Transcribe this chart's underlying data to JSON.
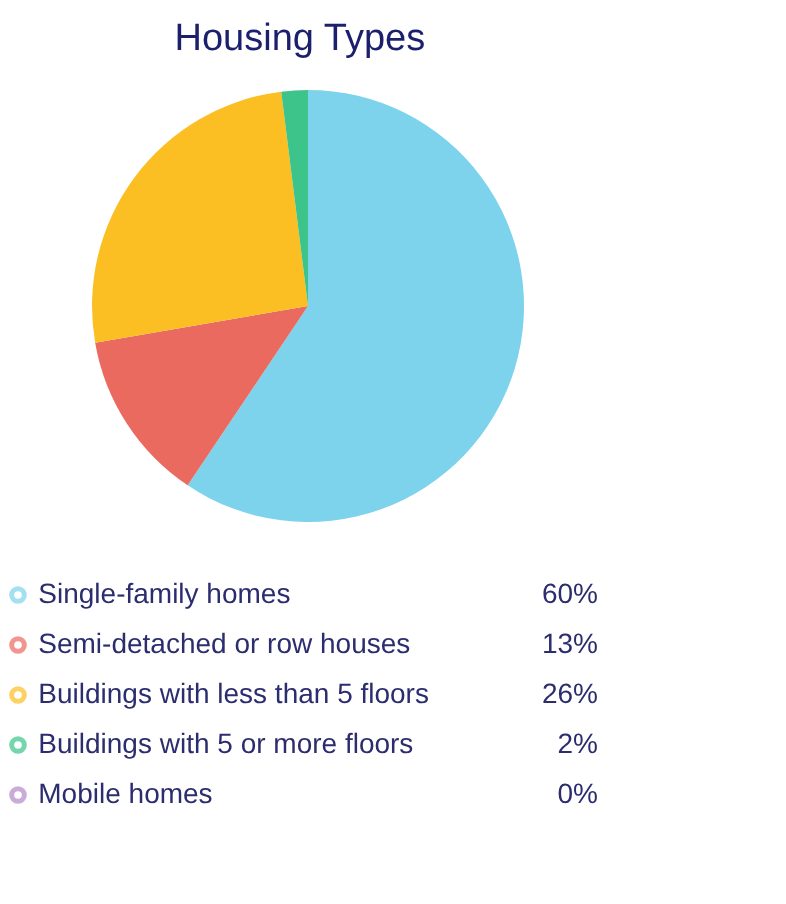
{
  "chart_data": {
    "type": "pie",
    "title": "Housing Types",
    "categories": [
      "Single-family homes",
      "Semi-detached or row houses",
      "Buildings with less than 5 floors",
      "Buildings with 5 or more floors",
      "Mobile homes"
    ],
    "values": [
      60,
      13,
      26,
      2,
      0
    ],
    "colors": [
      "#7dd3ec",
      "#ea6a60",
      "#fbbf24",
      "#3cc48a",
      "#b48ac8"
    ],
    "value_labels": [
      "60%",
      "13%",
      "26%",
      "2%",
      "0%"
    ],
    "legend": "bottom"
  }
}
